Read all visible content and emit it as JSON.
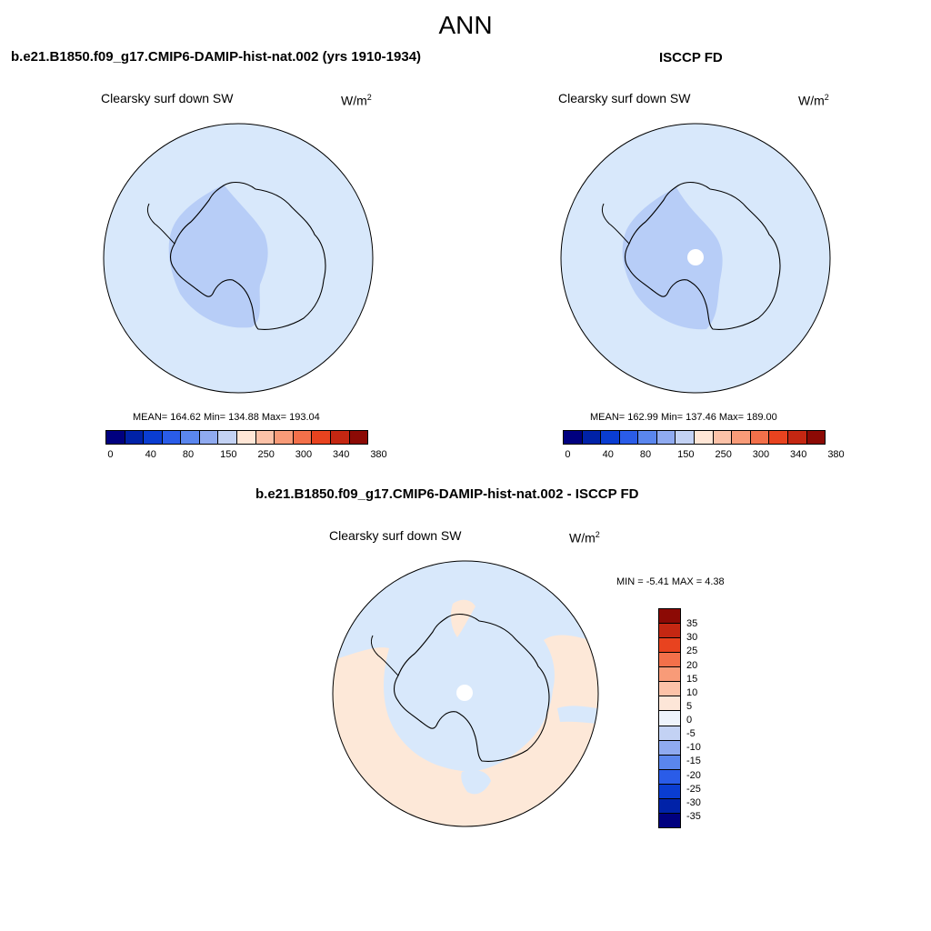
{
  "title": "ANN",
  "panels": {
    "model": {
      "title": "b.e21.B1850.f09_g17.CMIP6-DAMIP-hist-nat.002 (yrs 1910-1934)",
      "variable": "Clearsky surf down SW",
      "units_base": "W/m",
      "units_exp": "2",
      "stats": "MEAN= 164.62  Min= 134.88  Max= 193.04"
    },
    "obs": {
      "title": "ISCCP FD",
      "variable": "Clearsky surf down SW",
      "units_base": "W/m",
      "units_exp": "2",
      "stats": "MEAN= 162.99  Min= 137.46  Max= 189.00"
    },
    "diff": {
      "title": "b.e21.B1850.f09_g17.CMIP6-DAMIP-hist-nat.002 - ISCCP FD",
      "variable": "Clearsky surf down SW",
      "units_base": "W/m",
      "units_exp": "2",
      "stats": "MIN =  -5.41 MAX =   4.38"
    }
  },
  "colorbar_main": {
    "colors": [
      "#00007f",
      "#0022a8",
      "#0a3dd1",
      "#2a5ce8",
      "#5a86ee",
      "#8faaf0",
      "#c3d2f4",
      "#ffe6d6",
      "#fcc2a8",
      "#f89b78",
      "#f3704a",
      "#e8431f",
      "#c42712",
      "#8c0a05"
    ],
    "labels": [
      "0",
      "40",
      "80",
      "150",
      "250",
      "300",
      "340",
      "380"
    ]
  },
  "colorbar_diff": {
    "colors": [
      "#8c0a05",
      "#c42712",
      "#e8431f",
      "#f3704a",
      "#f89b78",
      "#fcc2a8",
      "#fde6d8",
      "#eef3fb",
      "#c3d2f4",
      "#8faaf0",
      "#5a86ee",
      "#2a5ce8",
      "#0a3dd1",
      "#0022a8",
      "#00007f"
    ],
    "labels": [
      "35",
      "30",
      "25",
      "20",
      "15",
      "10",
      "5",
      "0",
      "-5",
      "-10",
      "-15",
      "-20",
      "-25",
      "-30",
      "-35"
    ]
  },
  "map_colors": {
    "ocean": "#d8e8fb",
    "west_antarctica_model": "#b7cdf7",
    "west_antarctica_obs": "#b7cdf7",
    "diff_positive": "#fde8d8",
    "diff_negative": "#d8e8fb",
    "pole_hole": "#ffffff"
  }
}
